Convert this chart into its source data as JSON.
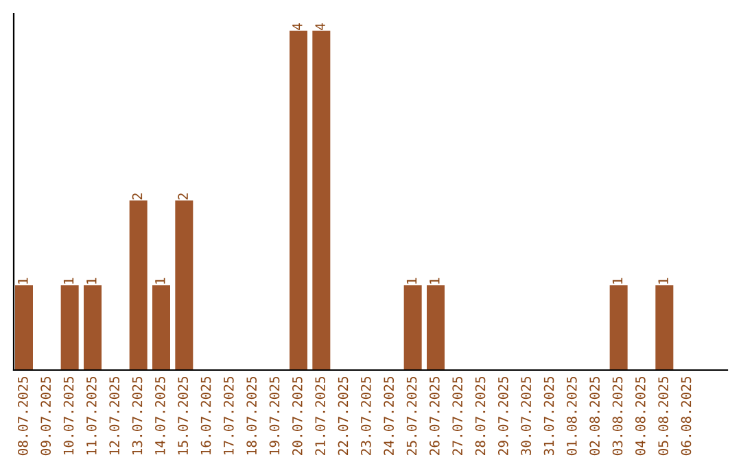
{
  "chart_data": {
    "type": "bar",
    "categories": [
      "08.07.2025",
      "09.07.2025",
      "10.07.2025",
      "11.07.2025",
      "12.07.2025",
      "13.07.2025",
      "14.07.2025",
      "15.07.2025",
      "16.07.2025",
      "17.07.2025",
      "18.07.2025",
      "19.07.2025",
      "20.07.2025",
      "21.07.2025",
      "22.07.2025",
      "23.07.2025",
      "24.07.2025",
      "25.07.2025",
      "26.07.2025",
      "27.07.2025",
      "28.07.2025",
      "29.07.2025",
      "30.07.2025",
      "31.07.2025",
      "01.08.2025",
      "02.08.2025",
      "03.08.2025",
      "04.08.2025",
      "05.08.2025",
      "06.08.2025"
    ],
    "values": [
      1,
      0,
      1,
      1,
      0,
      2,
      1,
      2,
      0,
      0,
      0,
      0,
      4,
      4,
      0,
      0,
      0,
      1,
      1,
      0,
      0,
      0,
      0,
      0,
      0,
      0,
      1,
      0,
      1,
      0
    ],
    "value_labels": [
      "1",
      null,
      "1",
      "1",
      null,
      "2",
      "1",
      "2",
      null,
      null,
      null,
      null,
      "4",
      "4",
      null,
      null,
      null,
      "1",
      "1",
      null,
      null,
      null,
      null,
      null,
      null,
      null,
      "1",
      null,
      "1",
      null
    ],
    "color": "#a0562c",
    "tick_labels": "x",
    "grid": false,
    "legend": false
  }
}
